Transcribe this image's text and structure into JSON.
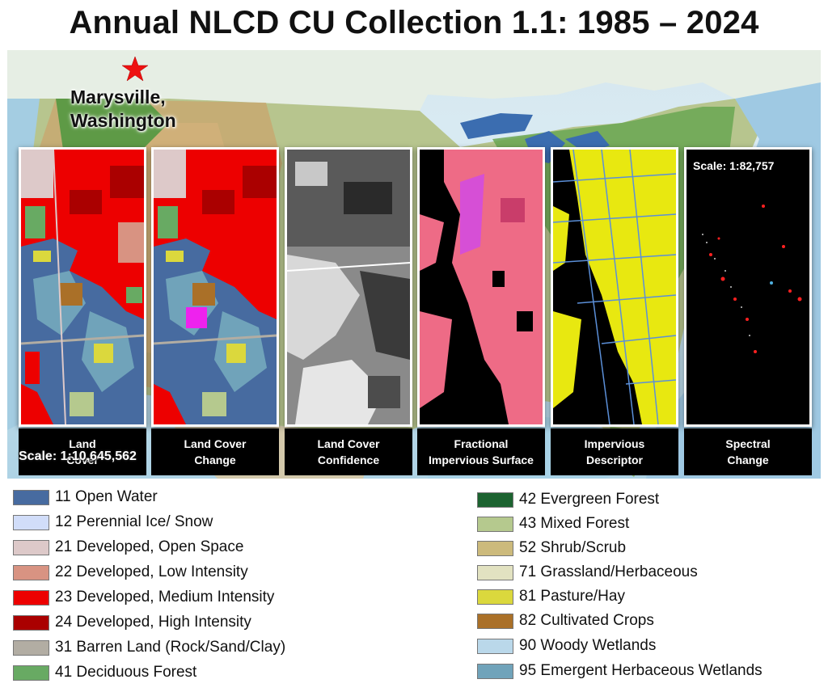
{
  "title": "Annual NLCD CU Collection 1.1: 1985 – 2024",
  "map": {
    "place_label": "Marysville, Washington",
    "place_line1": "Marysville,",
    "place_line2": "Washington",
    "marker_icon": "star-icon",
    "marker_color": "#ee1111",
    "scale_label": "Scale: 1:10,645,562"
  },
  "panels": [
    {
      "caption": "Land\nCover",
      "style": "landcover"
    },
    {
      "caption": "Land Cover\nChange",
      "style": "change"
    },
    {
      "caption": "Land Cover\nConfidence",
      "style": "confidence"
    },
    {
      "caption": "Fractional\nImpervious Surface",
      "style": "fractional"
    },
    {
      "caption": "Impervious\nDescriptor",
      "style": "descriptor"
    },
    {
      "caption": "Spectral\nChange",
      "style": "spectral",
      "scale_label": "Scale: 1:82,757"
    }
  ],
  "legend": {
    "left": [
      {
        "label": "11 Open Water",
        "color": "#476ba0"
      },
      {
        "label": "12 Perennial Ice/ Snow",
        "color": "#d1ddf9"
      },
      {
        "label": "21 Developed, Open Space",
        "color": "#ddc9c9"
      },
      {
        "label": "22 Developed, Low Intensity",
        "color": "#d89382"
      },
      {
        "label": "23 Developed, Medium Intensity",
        "color": "#ed0000"
      },
      {
        "label": "24 Developed, High Intensity",
        "color": "#aa0000"
      },
      {
        "label": "31 Barren Land (Rock/Sand/Clay)",
        "color": "#b2ada3"
      },
      {
        "label": "41 Deciduous Forest",
        "color": "#68aa63"
      }
    ],
    "right": [
      {
        "label": "42 Evergreen Forest",
        "color": "#1c6330"
      },
      {
        "label": "43 Mixed Forest",
        "color": "#b5c98e"
      },
      {
        "label": "52 Shrub/Scrub",
        "color": "#ccba7c"
      },
      {
        "label": "71 Grassland/Herbaceous",
        "color": "#e2e2c1"
      },
      {
        "label": "81 Pasture/Hay",
        "color": "#dbd83d"
      },
      {
        "label": "82 Cultivated Crops",
        "color": "#aa7028"
      },
      {
        "label": "90 Woody Wetlands",
        "color": "#bad8ea"
      },
      {
        "label": "95 Emergent Herbaceous Wetlands",
        "color": "#70a3ba"
      }
    ]
  }
}
